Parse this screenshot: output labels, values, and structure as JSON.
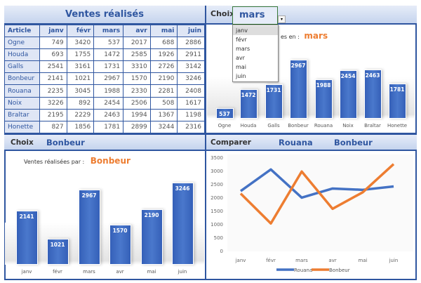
{
  "table": {
    "title": "Ventes réalisés",
    "header": [
      "Article",
      "janv",
      "févr",
      "mars",
      "avr",
      "mai",
      "juin"
    ],
    "rows": [
      [
        "Ogne",
        749,
        3420,
        537,
        2017,
        688,
        2886
      ],
      [
        "Houda",
        693,
        1755,
        1472,
        2585,
        1926,
        2911
      ],
      [
        "Galls",
        2541,
        3161,
        1731,
        3310,
        2726,
        3142
      ],
      [
        "Bonbeur",
        2141,
        1021,
        2967,
        1570,
        2190,
        3246
      ],
      [
        "Rouana",
        2235,
        3045,
        1988,
        2330,
        2281,
        2408
      ],
      [
        "Noix",
        3226,
        892,
        2454,
        2506,
        508,
        1617
      ],
      [
        "Braltar",
        2195,
        2229,
        2463,
        1994,
        1367,
        1198
      ],
      [
        "Honette",
        827,
        1856,
        1781,
        2899,
        3244,
        2316
      ]
    ]
  },
  "month_panel": {
    "label": "Choix",
    "selected": "mars",
    "dropdown_options": [
      "janv",
      "févr",
      "mars",
      "avr",
      "mai",
      "juin"
    ],
    "highlighted": "janv",
    "chart_title_visible": "es en :",
    "chart_title_value": "mars"
  },
  "article_panel": {
    "label": "Choix",
    "selected": "Bonbeur",
    "chart_title": "Ventes réalisées par :",
    "chart_title_value": "Bonbeur"
  },
  "compare_panel": {
    "label": "Comparer",
    "item1": "Rouana",
    "item2": "Bonbeur"
  },
  "colors": {
    "accent": "#2f56a0",
    "bar": "#4472c4",
    "orange": "#ed7d31",
    "blue_line": "#4472c4"
  },
  "chart_data": [
    {
      "type": "bar",
      "categories": [
        "Ogne",
        "Houda",
        "Galls",
        "Bonbeur",
        "Rouana",
        "Noix",
        "Braltar",
        "Honette"
      ],
      "values": [
        537,
        1472,
        1731,
        2967,
        1988,
        2454,
        2463,
        1781
      ]
    },
    {
      "type": "bar",
      "categories": [
        "janv",
        "févr",
        "mars",
        "avr",
        "mai",
        "juin"
      ],
      "values": [
        2141,
        1021,
        2967,
        1570,
        2190,
        3246
      ]
    },
    {
      "type": "line",
      "categories": [
        "janv",
        "févr",
        "mars",
        "avr",
        "mai",
        "juin"
      ],
      "ylim": [
        0,
        3500
      ],
      "yticks": [
        0,
        500,
        1000,
        1500,
        2000,
        2500,
        3000,
        3500
      ],
      "legend": "bottom",
      "series": [
        {
          "name": "Rouana",
          "values": [
            2235,
            3045,
            1988,
            2330,
            2281,
            2408
          ]
        },
        {
          "name": "Bonbeur",
          "values": [
            2141,
            1021,
            2967,
            1570,
            2190,
            3246
          ]
        }
      ]
    }
  ]
}
